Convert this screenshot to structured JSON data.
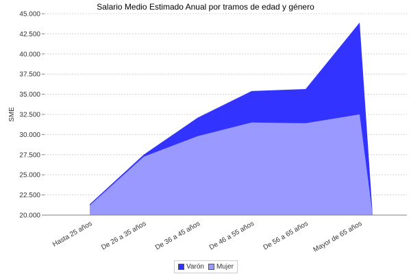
{
  "chart_data": {
    "type": "area",
    "title": "Salario Medio Estimado Anual por tramos de edad y género",
    "xlabel": "",
    "ylabel": "SME",
    "ylim": [
      20000,
      45000
    ],
    "yticks": [
      "20.000",
      "22.500",
      "25.000",
      "27.500",
      "30.000",
      "32.500",
      "35.000",
      "37.500",
      "40.000",
      "42.500",
      "45.000"
    ],
    "categories": [
      "Hasta 25  años",
      "De 26 a 35  años",
      "De 36 a 45 años",
      "De 46 a 55  años",
      "De 56 a 65  años",
      "Mayor de 65  años"
    ],
    "series": [
      {
        "name": "Varón",
        "color": "#3333ff",
        "values": [
          21350,
          27500,
          32100,
          35400,
          35650,
          43900
        ]
      },
      {
        "name": "Mujer",
        "color": "#9999ff",
        "values": [
          21200,
          27250,
          29800,
          31500,
          31400,
          32500
        ]
      }
    ],
    "grid": true,
    "legend_position": "bottom"
  },
  "legend": {
    "items": [
      {
        "label": "Varón",
        "color": "#3333ff"
      },
      {
        "label": "Mujer",
        "color": "#9999ff"
      }
    ]
  }
}
